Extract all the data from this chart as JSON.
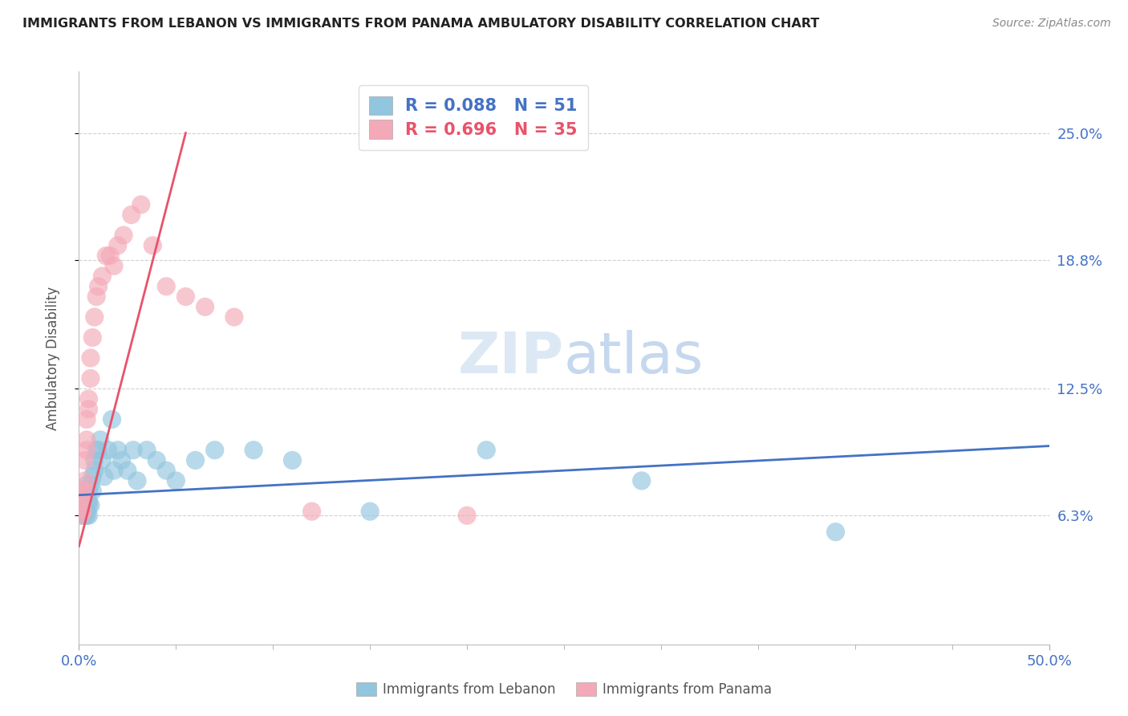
{
  "title": "IMMIGRANTS FROM LEBANON VS IMMIGRANTS FROM PANAMA AMBULATORY DISABILITY CORRELATION CHART",
  "source": "Source: ZipAtlas.com",
  "ylabel": "Ambulatory Disability",
  "xlim": [
    0.0,
    0.5
  ],
  "ylim": [
    0.0,
    0.28
  ],
  "ytick_labels": [
    "6.3%",
    "12.5%",
    "18.8%",
    "25.0%"
  ],
  "ytick_vals": [
    0.063,
    0.125,
    0.188,
    0.25
  ],
  "legend_r1": "R = 0.088",
  "legend_n1": "N = 51",
  "legend_r2": "R = 0.696",
  "legend_n2": "N = 35",
  "color_blue": "#92c5de",
  "color_pink": "#f4a9b8",
  "color_line_blue": "#4472c4",
  "color_line_pink": "#e8536a",
  "lebanon_x": [
    0.001,
    0.001,
    0.001,
    0.002,
    0.002,
    0.002,
    0.002,
    0.003,
    0.003,
    0.003,
    0.003,
    0.003,
    0.004,
    0.004,
    0.004,
    0.004,
    0.005,
    0.005,
    0.005,
    0.005,
    0.006,
    0.006,
    0.007,
    0.007,
    0.008,
    0.008,
    0.009,
    0.01,
    0.011,
    0.012,
    0.013,
    0.015,
    0.017,
    0.018,
    0.02,
    0.022,
    0.025,
    0.028,
    0.03,
    0.035,
    0.04,
    0.045,
    0.05,
    0.06,
    0.07,
    0.09,
    0.11,
    0.15,
    0.21,
    0.29,
    0.39
  ],
  "lebanon_y": [
    0.068,
    0.072,
    0.075,
    0.063,
    0.068,
    0.071,
    0.073,
    0.065,
    0.07,
    0.063,
    0.075,
    0.068,
    0.078,
    0.072,
    0.065,
    0.063,
    0.075,
    0.068,
    0.063,
    0.07,
    0.078,
    0.068,
    0.082,
    0.075,
    0.09,
    0.085,
    0.095,
    0.095,
    0.1,
    0.09,
    0.082,
    0.095,
    0.11,
    0.085,
    0.095,
    0.09,
    0.085,
    0.095,
    0.08,
    0.095,
    0.09,
    0.085,
    0.08,
    0.09,
    0.095,
    0.095,
    0.09,
    0.065,
    0.095,
    0.08,
    0.055
  ],
  "panama_x": [
    0.001,
    0.001,
    0.001,
    0.002,
    0.002,
    0.002,
    0.003,
    0.003,
    0.003,
    0.004,
    0.004,
    0.004,
    0.005,
    0.005,
    0.006,
    0.006,
    0.007,
    0.008,
    0.009,
    0.01,
    0.012,
    0.014,
    0.016,
    0.018,
    0.02,
    0.023,
    0.027,
    0.032,
    0.038,
    0.045,
    0.055,
    0.065,
    0.08,
    0.12,
    0.2
  ],
  "panama_y": [
    0.063,
    0.068,
    0.072,
    0.07,
    0.065,
    0.075,
    0.08,
    0.09,
    0.075,
    0.095,
    0.1,
    0.11,
    0.12,
    0.115,
    0.13,
    0.14,
    0.15,
    0.16,
    0.17,
    0.175,
    0.18,
    0.19,
    0.19,
    0.185,
    0.195,
    0.2,
    0.21,
    0.215,
    0.195,
    0.175,
    0.17,
    0.165,
    0.16,
    0.065,
    0.063
  ],
  "leb_trend_x0": 0.0,
  "leb_trend_x1": 0.5,
  "leb_trend_y0": 0.073,
  "leb_trend_y1": 0.097,
  "pan_trend_x0": 0.0,
  "pan_trend_x1": 0.055,
  "pan_trend_y0": 0.048,
  "pan_trend_y1": 0.25
}
